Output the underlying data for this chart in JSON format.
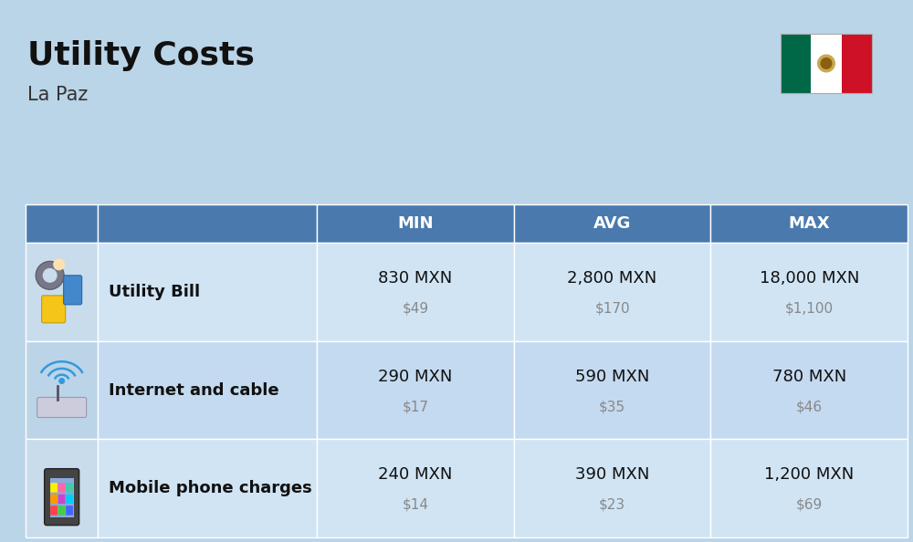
{
  "title": "Utility Costs",
  "subtitle": "La Paz",
  "background_color": "#bad4e8",
  "header_bg_color": "#4a7aad",
  "header_text_color": "#ffffff",
  "row_bg_even": "#d0e4f4",
  "row_bg_odd": "#c4daf0",
  "icon_col_bg_even": "#c8dcec",
  "icon_col_bg_odd": "#bcd4e8",
  "col_headers": [
    "MIN",
    "AVG",
    "MAX"
  ],
  "rows": [
    {
      "label": "Utility Bill",
      "min_mxn": "830 MXN",
      "min_usd": "$49",
      "avg_mxn": "2,800 MXN",
      "avg_usd": "$170",
      "max_mxn": "18,000 MXN",
      "max_usd": "$1,100",
      "icon": "utility"
    },
    {
      "label": "Internet and cable",
      "min_mxn": "290 MXN",
      "min_usd": "$17",
      "avg_mxn": "590 MXN",
      "avg_usd": "$35",
      "max_mxn": "780 MXN",
      "max_usd": "$46",
      "icon": "internet"
    },
    {
      "label": "Mobile phone charges",
      "min_mxn": "240 MXN",
      "min_usd": "$14",
      "avg_mxn": "390 MXN",
      "avg_usd": "$23",
      "max_mxn": "1,200 MXN",
      "max_usd": "$69",
      "icon": "mobile"
    }
  ],
  "fig_width": 10.0,
  "fig_height": 5.94,
  "dpi": 100,
  "title_fontsize": 26,
  "subtitle_fontsize": 15,
  "header_fontsize": 13,
  "label_fontsize": 13,
  "mxn_fontsize": 13,
  "usd_fontsize": 11
}
